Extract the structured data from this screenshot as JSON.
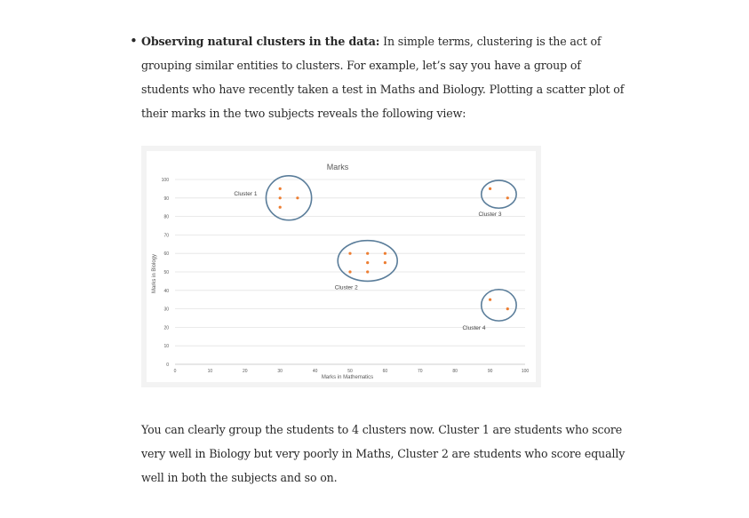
{
  "bullet": {
    "heading": "Observing natural clusters in the data:",
    "text": " In simple terms, clustering is the act of grouping similar entities to clusters. For example, let’s say you have a group of students who have recently taken a test in Maths and Biology. Plotting a scatter plot of their marks in the two subjects reveals the following view:"
  },
  "chart_data": {
    "type": "scatter",
    "title": "Marks",
    "xlabel": "Marks in Mathematics",
    "ylabel": "Marks in Biology",
    "xlim": [
      0,
      100
    ],
    "ylim": [
      0,
      100
    ],
    "xticks": [
      "0",
      "10",
      "20",
      "30",
      "40",
      "50",
      "60",
      "70",
      "80",
      "90",
      "100"
    ],
    "yticks": [
      "0",
      "10",
      "20",
      "30",
      "40",
      "50",
      "60",
      "70",
      "80",
      "90",
      "100"
    ],
    "grid": "horizontal",
    "point_color": "#ed7d31",
    "circle_color": "#5a7d9a",
    "points": [
      {
        "x": 30,
        "y": 95
      },
      {
        "x": 30,
        "y": 90
      },
      {
        "x": 30,
        "y": 85
      },
      {
        "x": 35,
        "y": 90
      },
      {
        "x": 50,
        "y": 60
      },
      {
        "x": 55,
        "y": 60
      },
      {
        "x": 60,
        "y": 60
      },
      {
        "x": 55,
        "y": 55
      },
      {
        "x": 60,
        "y": 55
      },
      {
        "x": 50,
        "y": 50
      },
      {
        "x": 55,
        "y": 50
      },
      {
        "x": 90,
        "y": 95
      },
      {
        "x": 95,
        "y": 90
      },
      {
        "x": 90,
        "y": 35
      },
      {
        "x": 95,
        "y": 30
      }
    ],
    "clusters": [
      {
        "label": "Cluster 1",
        "cx": 32.5,
        "cy": 90,
        "rx": 6.5,
        "ry": 12
      },
      {
        "label": "Cluster 2",
        "cx": 55,
        "cy": 56,
        "rx": 8.5,
        "ry": 11
      },
      {
        "label": "Cluster 3",
        "cx": 92.5,
        "cy": 92,
        "rx": 5,
        "ry": 7.5
      },
      {
        "label": "Cluster 4",
        "cx": 92.5,
        "cy": 32,
        "rx": 5,
        "ry": 8.5
      }
    ]
  },
  "paragraph": "You can clearly group the students to 4 clusters now. Cluster 1 are students who score very well in Biology but very poorly in Maths, Cluster 2 are students who score equally well in both the subjects and so on."
}
